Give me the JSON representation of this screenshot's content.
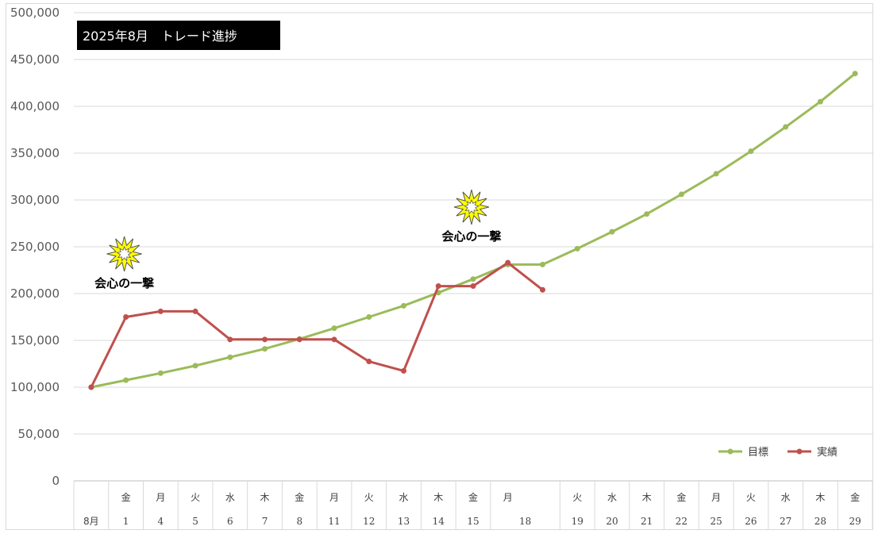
{
  "chart_data": {
    "type": "line",
    "title": "2025年8月　トレード進捗",
    "ylim": [
      0,
      500000
    ],
    "y_ticks": [
      "0",
      "50,000",
      "100,000",
      "150,000",
      "200,000",
      "250,000",
      "300,000",
      "350,000",
      "400,000",
      "450,000",
      "500,000"
    ],
    "y_tick_values": [
      0,
      50000,
      100000,
      150000,
      200000,
      250000,
      300000,
      350000,
      400000,
      450000,
      500000
    ],
    "grid": true,
    "legend_position": "bottom-right",
    "categories": [
      {
        "weekday": "",
        "day": "8月"
      },
      {
        "weekday": "金",
        "day": "1"
      },
      {
        "weekday": "月",
        "day": "4"
      },
      {
        "weekday": "火",
        "day": "5"
      },
      {
        "weekday": "水",
        "day": "6"
      },
      {
        "weekday": "木",
        "day": "7"
      },
      {
        "weekday": "金",
        "day": "8"
      },
      {
        "weekday": "月",
        "day": "11"
      },
      {
        "weekday": "火",
        "day": "12"
      },
      {
        "weekday": "水",
        "day": "13"
      },
      {
        "weekday": "木",
        "day": "14"
      },
      {
        "weekday": "金",
        "day": "15"
      },
      {
        "weekday": "月",
        "day": "18"
      },
      {
        "weekday": "",
        "day": ""
      },
      {
        "weekday": "火",
        "day": "19"
      },
      {
        "weekday": "水",
        "day": "20"
      },
      {
        "weekday": "木",
        "day": "21"
      },
      {
        "weekday": "金",
        "day": "22"
      },
      {
        "weekday": "月",
        "day": "25"
      },
      {
        "weekday": "火",
        "day": "26"
      },
      {
        "weekday": "水",
        "day": "27"
      },
      {
        "weekday": "木",
        "day": "28"
      },
      {
        "weekday": "金",
        "day": "29"
      }
    ],
    "series": [
      {
        "name": "目標",
        "color": "#9bbb59",
        "values": [
          100000,
          107500,
          115000,
          123000,
          132000,
          141000,
          151500,
          163000,
          175000,
          187000,
          201000,
          215500,
          231000,
          231000,
          248000,
          266000,
          285000,
          306000,
          328000,
          352000,
          378000,
          405000,
          435000
        ]
      },
      {
        "name": "実績",
        "color": "#c0504d",
        "values": [
          100000,
          175000,
          181000,
          181000,
          151000,
          151000,
          151000,
          151000,
          127500,
          117500,
          208000,
          208000,
          233000,
          204000,
          null,
          null,
          null,
          null,
          null,
          null,
          null,
          null,
          null
        ]
      }
    ],
    "annotations": [
      {
        "text": "会心の一撃",
        "icon": "starburst-icon",
        "category_index": 1,
        "value": 200000
      },
      {
        "text": "会心の一撃",
        "icon": "starburst-icon",
        "category_index": 11,
        "value": 250000
      }
    ]
  }
}
